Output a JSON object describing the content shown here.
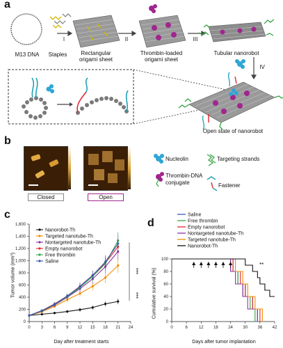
{
  "panel_a": {
    "letter": "a",
    "steps": [
      "I",
      "II",
      "III",
      "IV"
    ],
    "labels": {
      "m13": "M13 DNA",
      "staples": "Staples",
      "rect_sheet": "Rectangular origami sheet",
      "thrombin_sheet": "Thrombin-loaded origami sheet",
      "tubular": "Tubular nanorobot",
      "open_state": "Open state of nanorobot"
    }
  },
  "panel_b": {
    "letter": "b",
    "closed": "Closed",
    "open": "Open",
    "legend": {
      "nucleolin": "Nucleolin",
      "thrombin_conjugate": "Thrombin-DNA conjugate",
      "targeting": "Targeting strands",
      "fastener": "Fastener"
    }
  },
  "panel_c": {
    "letter": "c",
    "significance": [
      "***",
      "***"
    ],
    "chart_data": {
      "type": "line",
      "xlabel": "Day after treatment starts",
      "ylabel": "Tumor volume (mm³)",
      "xlim": [
        0,
        24
      ],
      "ylim": [
        0,
        1600
      ],
      "xticks": [
        "0",
        "3",
        "6",
        "9",
        "12",
        "15",
        "18",
        "21",
        "24"
      ],
      "yticks": [
        "0",
        "200",
        "400",
        "600",
        "800",
        "1,000",
        "1,200",
        "1,400",
        "1,600"
      ],
      "x": [
        0,
        3,
        6,
        9,
        12,
        15,
        18,
        21
      ],
      "series": [
        {
          "name": "Nanorobot-Th",
          "color": "#111111",
          "values": [
            100,
            120,
            140,
            165,
            195,
            230,
            290,
            330
          ],
          "error": [
            10,
            15,
            20,
            25,
            30,
            35,
            40,
            45
          ]
        },
        {
          "name": "Targeted nanotube-Th",
          "color": "#f28c00",
          "values": [
            100,
            160,
            250,
            360,
            460,
            580,
            720,
            920
          ],
          "error": [
            10,
            20,
            30,
            40,
            50,
            70,
            90,
            120
          ]
        },
        {
          "name": "Nontargeted nanotube-Th",
          "color": "#8b2fa0",
          "values": [
            100,
            170,
            270,
            400,
            540,
            700,
            900,
            1150
          ],
          "error": [
            10,
            20,
            30,
            40,
            60,
            80,
            100,
            130
          ]
        },
        {
          "name": "Empty nanorobot",
          "color": "#e2272f",
          "values": [
            100,
            180,
            290,
            420,
            580,
            760,
            960,
            1230
          ],
          "error": [
            10,
            20,
            30,
            40,
            60,
            80,
            100,
            130
          ]
        },
        {
          "name": "Free thrombin",
          "color": "#35a544",
          "values": [
            100,
            175,
            280,
            410,
            560,
            740,
            950,
            1330
          ],
          "error": [
            10,
            20,
            30,
            40,
            60,
            80,
            110,
            140
          ]
        },
        {
          "name": "Saline",
          "color": "#3b56b0",
          "values": [
            100,
            180,
            285,
            420,
            575,
            760,
            980,
            1280
          ],
          "error": [
            10,
            20,
            30,
            40,
            60,
            80,
            110,
            140
          ]
        }
      ]
    }
  },
  "panel_d": {
    "letter": "d",
    "significance": "**",
    "chart_data": {
      "type": "line",
      "xlabel": "Days after tumor implantation",
      "ylabel": "Cumulative survival (%)",
      "xlim": [
        0,
        42
      ],
      "ylim": [
        0,
        100
      ],
      "xticks": [
        "0",
        "6",
        "12",
        "18",
        "24",
        "30",
        "36",
        "42"
      ],
      "yticks": [
        "0",
        "20",
        "40",
        "60",
        "80",
        "100"
      ],
      "treatment_days": [
        9,
        12,
        15,
        18,
        21,
        24
      ],
      "series": [
        {
          "name": "Saline",
          "color": "#3b56b0",
          "steps": [
            [
              0,
              100
            ],
            [
              24,
              100
            ],
            [
              24,
              80
            ],
            [
              27,
              80
            ],
            [
              27,
              60
            ],
            [
              30,
              60
            ],
            [
              30,
              40
            ],
            [
              33,
              40
            ],
            [
              33,
              20
            ],
            [
              35,
              20
            ],
            [
              35,
              0
            ]
          ]
        },
        {
          "name": "Free thrombin",
          "color": "#35a544",
          "steps": [
            [
              0,
              100
            ],
            [
              25,
              100
            ],
            [
              25,
              80
            ],
            [
              27,
              80
            ],
            [
              27,
              60
            ],
            [
              29,
              60
            ],
            [
              29,
              40
            ],
            [
              32,
              40
            ],
            [
              32,
              20
            ],
            [
              34,
              20
            ],
            [
              34,
              0
            ]
          ]
        },
        {
          "name": "Empty nanorobot",
          "color": "#e2272f",
          "steps": [
            [
              0,
              100
            ],
            [
              25,
              100
            ],
            [
              25,
              80
            ],
            [
              28,
              80
            ],
            [
              28,
              60
            ],
            [
              30,
              60
            ],
            [
              30,
              40
            ],
            [
              33,
              40
            ],
            [
              33,
              20
            ],
            [
              36,
              20
            ],
            [
              36,
              0
            ]
          ]
        },
        {
          "name": "Nontargeted nanotube-Th",
          "color": "#8b2fa0",
          "steps": [
            [
              0,
              100
            ],
            [
              24,
              100
            ],
            [
              24,
              80
            ],
            [
              26,
              80
            ],
            [
              26,
              60
            ],
            [
              29,
              60
            ],
            [
              29,
              40
            ],
            [
              31,
              40
            ],
            [
              31,
              20
            ],
            [
              35,
              20
            ],
            [
              35,
              0
            ]
          ]
        },
        {
          "name": "Targeted nanotube-Th",
          "color": "#f28c00",
          "steps": [
            [
              0,
              100
            ],
            [
              26,
              100
            ],
            [
              26,
              80
            ],
            [
              29,
              80
            ],
            [
              29,
              60
            ],
            [
              31,
              60
            ],
            [
              31,
              40
            ],
            [
              34,
              40
            ],
            [
              34,
              20
            ],
            [
              37,
              20
            ],
            [
              37,
              0
            ]
          ]
        },
        {
          "name": "Nanorobot-Th",
          "color": "#111111",
          "steps": [
            [
              0,
              100
            ],
            [
              30,
              100
            ],
            [
              30,
              90
            ],
            [
              33,
              90
            ],
            [
              33,
              80
            ],
            [
              35,
              80
            ],
            [
              35,
              70
            ],
            [
              36,
              70
            ],
            [
              36,
              60
            ],
            [
              38,
              60
            ],
            [
              38,
              50
            ],
            [
              40,
              50
            ],
            [
              40,
              40
            ],
            [
              42,
              40
            ]
          ]
        }
      ]
    }
  }
}
